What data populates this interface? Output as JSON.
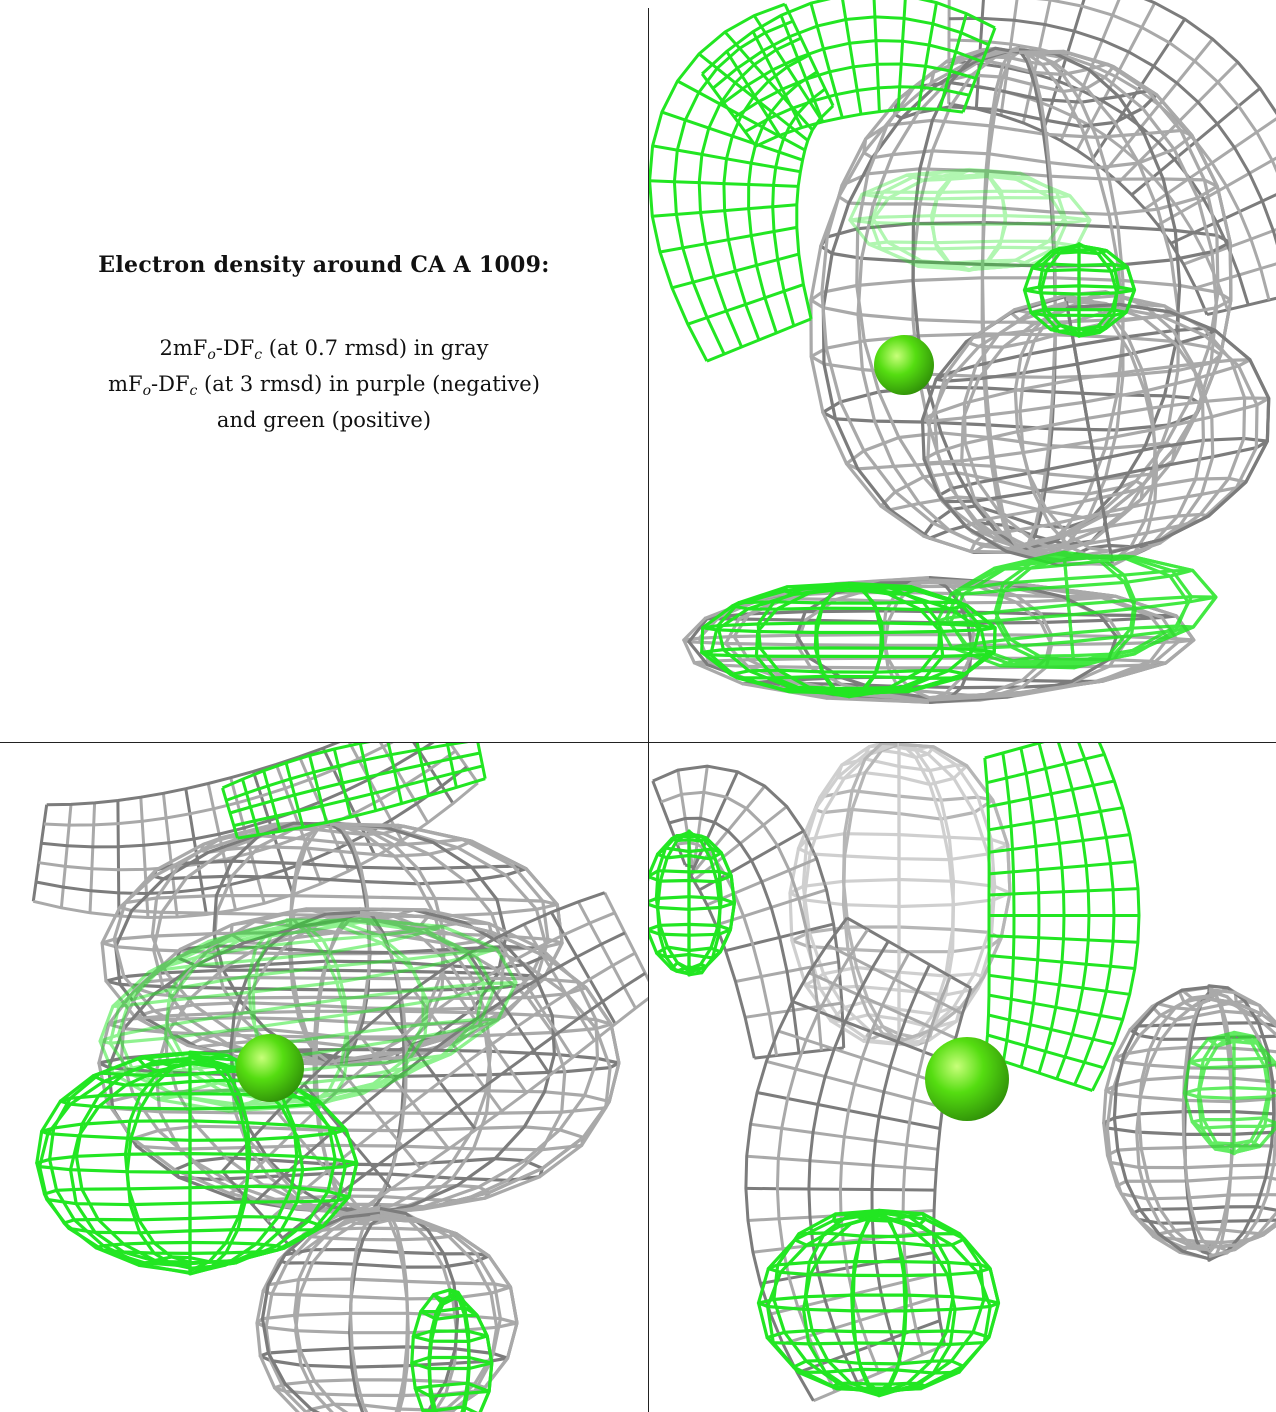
{
  "caption": {
    "title": "Electron density around CA A 1009:",
    "line1": {
      "pre": "2mF",
      "sub1": "o",
      "mid": "-DF",
      "sub2": "c",
      "post": " (at 0.7 rmsd) in gray"
    },
    "line2": {
      "pre": "mF",
      "sub1": "o",
      "mid": "-DF",
      "sub2": "c",
      "post": " (at 3 rmsd) in purple (negative)"
    },
    "line3": "and green (positive)"
  },
  "colors": {
    "gray_mesh": "#a9a9a9",
    "gray_mesh_dark": "#7c7c7c",
    "green_mesh": "#22e622",
    "sphere": "#55dd11",
    "border": "#222222"
  }
}
